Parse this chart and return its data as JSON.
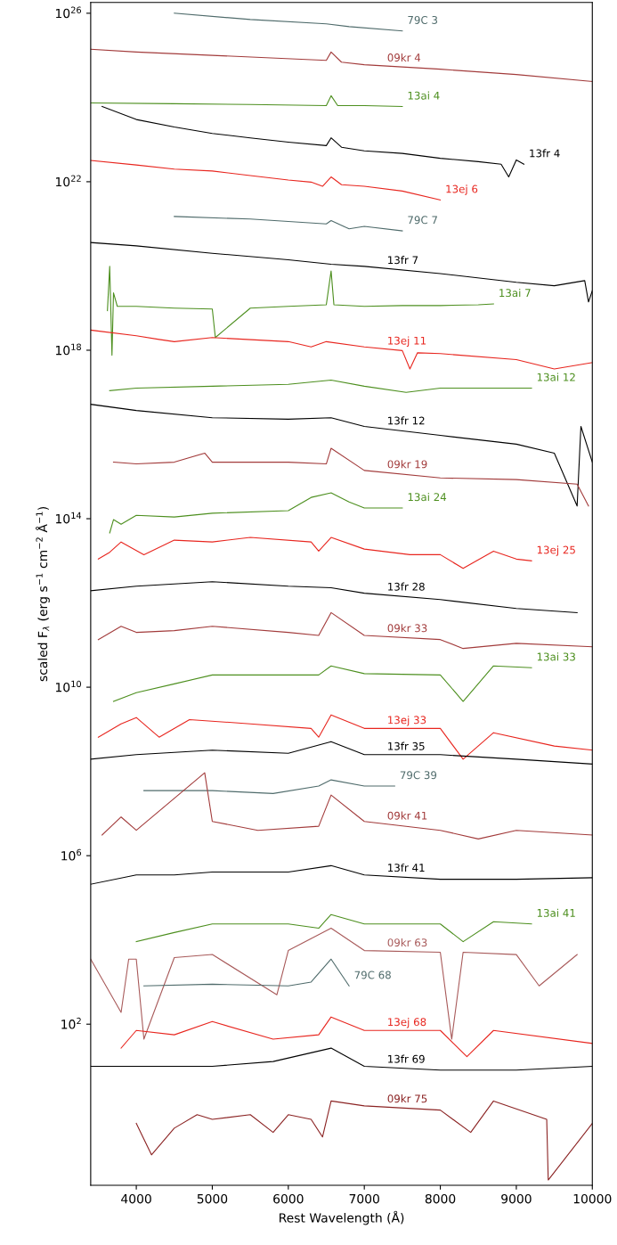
{
  "chart_data": {
    "type": "line",
    "xlabel": "Rest Wavelength (Å)",
    "ylabel": "scaled F$_{λ}$ (erg s$^{−1}$ cm$^{−2}$ Å$^{−1}$)",
    "log": "y",
    "grid": false,
    "legend": false,
    "marker": "none",
    "line_style": "solid",
    "xlim": [
      3400,
      10000
    ],
    "xticks": [
      4000,
      5000,
      6000,
      7000,
      8000,
      9000,
      10000
    ],
    "ylim": [
      0.015,
      1.8e+26
    ],
    "yticks": [
      {
        "value": 100,
        "label": "10$^{2}$"
      },
      {
        "value": 1000000.0,
        "label": "10$^{6}$"
      },
      {
        "value": 10000000000.0,
        "label": "10$^{10}$"
      },
      {
        "value": 100000000000000.0,
        "label": "10$^{14}$"
      },
      {
        "value": 1e+18,
        "label": "10$^{18}$"
      },
      {
        "value": 1e+22,
        "label": "10$^{22}$"
      },
      {
        "value": 1e+26,
        "label": "10$^{26}$"
      }
    ],
    "series": [
      {
        "name": "79C 3",
        "color": "#4f6b6b",
        "x": [
          4500,
          5500,
          6500,
          6800,
          7500
        ],
        "values": [
          1e+26,
          7.1e+25,
          5.6e+25,
          4.8e+25,
          3.8e+25
        ]
      },
      {
        "name": "09kr 4",
        "color": "#a23b3b",
        "x": [
          3400,
          4000,
          5000,
          6500,
          6563,
          6700,
          7000,
          8000,
          9000,
          10000
        ],
        "values": [
          1.4e+25,
          1.2e+25,
          1e+25,
          7.6e+24,
          1.2e+25,
          6.9e+24,
          6e+24,
          4.7e+24,
          3.5e+24,
          2.4e+24
        ]
      },
      {
        "name": "13ai 4",
        "color": "#4d8f1f",
        "x": [
          3400,
          4500,
          5500,
          6500,
          6563,
          6650,
          7000,
          7500
        ],
        "values": [
          7.4e+23,
          7.1e+23,
          6.8e+23,
          6.4e+23,
          1.1e+24,
          6.4e+23,
          6.4e+23,
          6.1e+23
        ]
      },
      {
        "name": "13fr 4",
        "color": "#000000",
        "x": [
          3550,
          4000,
          4500,
          5000,
          5500,
          6000,
          6500,
          6563,
          6700,
          7000,
          7500,
          8000,
          8500,
          8800,
          8900,
          9000,
          9100
        ],
        "values": [
          6.1e+23,
          3e+23,
          2e+23,
          1.4e+23,
          1.1e+23,
          8.7e+22,
          7.2e+22,
          1.1e+23,
          6.6e+22,
          5.4e+22,
          4.7e+22,
          3.6e+22,
          3e+22,
          2.6e+22,
          1.3e+22,
          3.3e+22,
          2.6e+22
        ]
      },
      {
        "name": "13ej 6",
        "color": "#e8261f",
        "x": [
          3400,
          4000,
          4500,
          5000,
          5500,
          6000,
          6300,
          6450,
          6563,
          6700,
          7000,
          7500,
          8000
        ],
        "values": [
          3.2e+22,
          2.5e+22,
          2e+22,
          1.8e+22,
          1.4e+22,
          1.1e+22,
          9.8e+21,
          7.8e+21,
          1.3e+22,
          8.5e+21,
          7.8e+21,
          6e+21,
          3.7e+21
        ]
      },
      {
        "name": "79C 7",
        "color": "#4f6b6b",
        "x": [
          4500,
          5500,
          6500,
          6563,
          6800,
          7000,
          7500
        ],
        "values": [
          1.5e+21,
          1.3e+21,
          1e+21,
          1.2e+21,
          7.6e+20,
          8.7e+20,
          6.8e+20
        ]
      },
      {
        "name": "13fr 7",
        "color": "#000000",
        "x": [
          3400,
          4000,
          5000,
          6000,
          6563,
          7000,
          8000,
          9000,
          9500,
          9900,
          9950,
          10000
        ],
        "values": [
          3.6e+20,
          3e+20,
          2e+20,
          1.4e+20,
          1.1e+20,
          9.8e+19,
          6.6e+19,
          4.1e+19,
          3.4e+19,
          4.5e+19,
          1.4e+19,
          2.6e+19
        ]
      },
      {
        "name": "13ai 7",
        "color": "#4d8f1f",
        "x": [
          3620,
          3650,
          3680,
          3700,
          3750,
          4000,
          4500,
          5000,
          5040,
          5500,
          6000,
          6500,
          6563,
          6600,
          7000,
          7500,
          8000,
          8500,
          8700
        ],
        "values": [
          8.7e+18,
          9.8e+19,
          7.6e+17,
          2.3e+19,
          1.1e+19,
          1.1e+19,
          1e+19,
          9.5e+18,
          2e+18,
          1e+19,
          1.1e+19,
          1.2e+19,
          7.6e+19,
          1.2e+19,
          1.1e+19,
          1.15e+19,
          1.15e+19,
          1.2e+19,
          1.26e+19
        ]
      },
      {
        "name": "13ej 11",
        "color": "#e8261f",
        "x": [
          3400,
          4000,
          4300,
          4500,
          5000,
          6000,
          6300,
          6500,
          7000,
          7500,
          7600,
          7700,
          8000,
          9000,
          9500,
          10000
        ],
        "values": [
          3e+18,
          2.2e+18,
          1.8e+18,
          1.6e+18,
          2e+18,
          1.6e+18,
          1.2e+18,
          1.6e+18,
          1.2e+18,
          9.8e+17,
          3.6e+17,
          8.7e+17,
          8.3e+17,
          6e+17,
          3.6e+17,
          5.1e+17
        ]
      },
      {
        "name": "13ai 12",
        "color": "#4d8f1f",
        "x": [
          3650,
          4000,
          5000,
          6000,
          6563,
          7000,
          7550,
          8000,
          9200
        ],
        "values": [
          1.1e+17,
          1.26e+17,
          1.4e+17,
          1.55e+17,
          1.95e+17,
          1.4e+17,
          1e+17,
          1.26e+17,
          1.26e+17
        ]
      },
      {
        "name": "13fr 12",
        "color": "#000000",
        "x": [
          3400,
          4000,
          5000,
          6000,
          6563,
          7000,
          8000,
          9000,
          9500,
          9800,
          9850,
          10000
        ],
        "values": [
          5.2e+16,
          3.7e+16,
          2.5e+16,
          2.3e+16,
          2.5e+16,
          1.55e+16,
          9500000000000000.0,
          5900000000000000.0,
          3600000000000000.0,
          200000000000000.0,
          1.55e+16,
          2200000000000000.0
        ]
      },
      {
        "name": "09kr 19",
        "color": "#a23b3b",
        "x": [
          3700,
          4000,
          4500,
          4900,
          5000,
          6000,
          6500,
          6563,
          7000,
          8000,
          9000,
          9800,
          9950
        ],
        "values": [
          2200000000000000.0,
          2000000000000000.0,
          2200000000000000.0,
          3600000000000000.0,
          2200000000000000.0,
          2200000000000000.0,
          2000000000000000.0,
          4700000000000000.0,
          1400000000000000.0,
          930000000000000.0,
          850000000000000.0,
          660000000000000.0,
          200000000000000.0
        ]
      },
      {
        "name": "13ai 24",
        "color": "#4d8f1f",
        "x": [
          3650,
          3700,
          3800,
          4000,
          4500,
          5000,
          6000,
          6300,
          6563,
          6800,
          7000,
          7500
        ],
        "values": [
          46000000000000.0,
          95000000000000.0,
          74000000000000.0,
          120000000000000.0,
          110000000000000.0,
          135000000000000.0,
          155000000000000.0,
          320000000000000.0,
          410000000000000.0,
          250000000000000.0,
          180000000000000.0,
          180000000000000.0
        ]
      },
      {
        "name": "13ej 25",
        "color": "#e8261f",
        "x": [
          3500,
          3650,
          3800,
          4100,
          4500,
          5000,
          5500,
          6300,
          6400,
          6563,
          7000,
          7600,
          8000,
          8300,
          8700,
          9000,
          9200
        ],
        "values": [
          11000000000000.0,
          16000000000000.0,
          28000000000000.0,
          14000000000000.0,
          31000000000000.0,
          28000000000000.0,
          36000000000000.0,
          28000000000000.0,
          17000000000000.0,
          36000000000000.0,
          19000000000000.0,
          14000000000000.0,
          14000000000000.0,
          6600000000000.0,
          17000000000000.0,
          11000000000000.0,
          10000000000000.0
        ]
      },
      {
        "name": "13fr 28",
        "color": "#000000",
        "x": [
          3400,
          4000,
          5000,
          6000,
          6563,
          7000,
          8000,
          9000,
          9800
        ],
        "values": [
          1950000000000.0,
          2500000000000.0,
          3200000000000.0,
          2500000000000.0,
          2300000000000.0,
          1700000000000.0,
          1200000000000.0,
          740000000000.0,
          590000000000.0
        ]
      },
      {
        "name": "09kr 33",
        "color": "#a23b3b",
        "x": [
          3500,
          3800,
          4000,
          4500,
          5000,
          6000,
          6400,
          6563,
          7000,
          8000,
          8300,
          9000,
          10000
        ],
        "values": [
          135000000000.0,
          280000000000.0,
          200000000000.0,
          220000000000.0,
          280000000000.0,
          200000000000.0,
          170000000000.0,
          590000000000.0,
          170000000000.0,
          135000000000.0,
          83000000000.0,
          110000000000.0,
          91000000000.0
        ]
      },
      {
        "name": "13ai 33",
        "color": "#4d8f1f",
        "x": [
          3700,
          4000,
          4500,
          5000,
          6000,
          6400,
          6563,
          7000,
          8000,
          8300,
          8700,
          9200
        ],
        "values": [
          4600000000.0,
          7400000000.0,
          12000000000.0,
          19500000000.0,
          19500000000.0,
          19500000000.0,
          32000000000.0,
          21000000000.0,
          19500000000.0,
          4600000000.0,
          32000000000.0,
          29000000000.0
        ]
      },
      {
        "name": "13ej 33",
        "color": "#e8261f",
        "x": [
          3500,
          3800,
          4000,
          4300,
          4700,
          5500,
          6300,
          6400,
          6563,
          7000,
          8000,
          8300,
          8700,
          9500,
          10000
        ],
        "values": [
          650000000.0,
          1350000000.0,
          1900000000.0,
          650000000.0,
          1700000000.0,
          1350000000.0,
          1050000000.0,
          650000000.0,
          2200000000.0,
          1050000000.0,
          1050000000.0,
          195000000.0,
          830000000.0,
          400000000.0,
          320000000.0
        ]
      },
      {
        "name": "13fr 35",
        "color": "#000000",
        "x": [
          3400,
          4000,
          5000,
          6000,
          6563,
          7000,
          8000,
          9000,
          10000
        ],
        "values": [
          195000000.0,
          250000000.0,
          320000000.0,
          270000000.0,
          510000000.0,
          250000000.0,
          250000000.0,
          195000000.0,
          150000000.0
        ]
      },
      {
        "name": "79C 39",
        "color": "#4f6b6b",
        "x": [
          4100,
          5000,
          5800,
          6400,
          6563,
          7000,
          7400
        ],
        "values": [
          35000000.0,
          35000000.0,
          30000000.0,
          45000000.0,
          63000000.0,
          45000000.0,
          45000000.0
        ]
      },
      {
        "name": "09kr 41",
        "color": "#a23b3b",
        "x": [
          3550,
          3800,
          4000,
          4900,
          5000,
          5600,
          6400,
          6563,
          7000,
          8000,
          8500,
          9000,
          10000
        ],
        "values": [
          3100000.0,
          8300000.0,
          4000000.0,
          93000000.0,
          6500000.0,
          4000000.0,
          5000000.0,
          27500000.0,
          6500000.0,
          4000000.0,
          2500000.0,
          4000000.0,
          3100000.0
        ]
      },
      {
        "name": "13fr 41",
        "color": "#000000",
        "x": [
          3400,
          4000,
          4500,
          5000,
          6000,
          6563,
          7000,
          8000,
          9000,
          10000
        ],
        "values": [
          210000.0,
          350000.0,
          350000.0,
          410000.0,
          410000.0,
          580000.0,
          350000.0,
          275000.0,
          275000.0,
          300000.0
        ]
      },
      {
        "name": "13ai 41",
        "color": "#4d8f1f",
        "x": [
          4000,
          4500,
          5000,
          6000,
          6400,
          6563,
          7000,
          8000,
          8300,
          8700,
          9200
        ],
        "values": [
          9100.0,
          15000.0,
          24000.0,
          24000.0,
          19000.0,
          40000.0,
          24000.0,
          24000.0,
          9100.0,
          27000.0,
          24000.0
        ]
      },
      {
        "name": "09kr 63",
        "color": "#a85a5a",
        "x": [
          3400,
          3800,
          3900,
          4000,
          4100,
          4500,
          5000,
          5850,
          6000,
          6563,
          7000,
          8000,
          8150,
          8300,
          9000,
          9300,
          9800
        ],
        "values": [
          3500.0,
          190,
          3500.0,
          3500.0,
          44,
          3800.0,
          4500.0,
          500,
          5600.0,
          19000.0,
          5600.0,
          5100.0,
          44,
          5100.0,
          4500.0,
          810,
          4500.0
        ]
      },
      {
        "name": "79C 68",
        "color": "#4f6b6b",
        "x": [
          4100,
          5000,
          6000,
          6300,
          6563,
          6800
        ],
        "values": [
          810,
          890,
          810,
          1000,
          3500,
          810
        ]
      },
      {
        "name": "13ej 68",
        "color": "#e8261f",
        "x": [
          3800,
          4000,
          4500,
          5000,
          5800,
          6400,
          6563,
          7000,
          8000,
          8350,
          8700,
          10000
        ],
        "values": [
          27,
          71,
          56,
          115,
          44,
          56,
          148,
          71,
          71,
          17,
          71,
          35
        ]
      },
      {
        "name": "13fr 69",
        "color": "#000000",
        "x": [
          3400,
          4000,
          5000,
          5800,
          6563,
          7000,
          8000,
          9000,
          10000
        ],
        "values": [
          10,
          10,
          10,
          13,
          27,
          10,
          8.1,
          8.1,
          10
        ]
      },
      {
        "name": "09kr 75",
        "color": "#8b2323",
        "x": [
          4000,
          4200,
          4500,
          4800,
          5000,
          5500,
          5800,
          6000,
          6300,
          6450,
          6563,
          7000,
          8000,
          8400,
          8700,
          9400,
          9420,
          10000
        ],
        "values": [
          0.44,
          0.079,
          0.34,
          0.71,
          0.55,
          0.71,
          0.27,
          0.71,
          0.55,
          0.21,
          1.5,
          1.15,
          0.91,
          0.27,
          1.5,
          0.55,
          0.02,
          0.44
        ]
      }
    ]
  }
}
